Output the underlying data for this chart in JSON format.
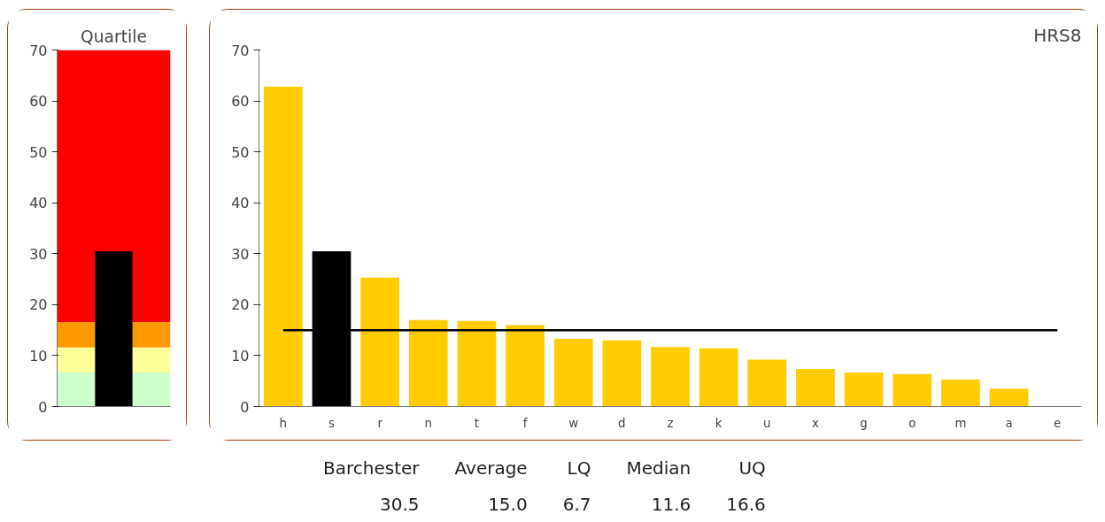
{
  "chart_data": [
    {
      "type": "bar",
      "title": "Quartile",
      "categories": [
        null
      ],
      "values": [
        30.5
      ],
      "color": "#000000",
      "ylim": [
        0,
        70
      ],
      "yticks": [
        0,
        10,
        20,
        30,
        40,
        50,
        60,
        70
      ],
      "tick_labels": "y",
      "grid": false,
      "bands": [
        {
          "axis": "y",
          "from": 0,
          "to": 6.7,
          "color": "#ccffcc"
        },
        {
          "axis": "y",
          "from": 6.7,
          "to": 11.6,
          "color": "#ffff99"
        },
        {
          "axis": "y",
          "from": 11.6,
          "to": 16.6,
          "color": "#ff9900"
        },
        {
          "axis": "y",
          "from": 16.6,
          "to": 70,
          "color": "#ff0000"
        }
      ]
    },
    {
      "type": "bar",
      "title": "HRS8",
      "categories": [
        "h",
        "s",
        "r",
        "n",
        "t",
        "f",
        "w",
        "d",
        "z",
        "k",
        "u",
        "x",
        "g",
        "o",
        "m",
        "a",
        "e"
      ],
      "values": [
        62.8,
        30.5,
        25.3,
        17.0,
        16.8,
        16.0,
        13.3,
        13.0,
        11.7,
        11.4,
        9.2,
        7.4,
        6.7,
        6.4,
        5.3,
        3.5,
        null
      ],
      "colors": [
        "#ffcc00",
        "#000000",
        "#ffcc00",
        "#ffcc00",
        "#ffcc00",
        "#ffcc00",
        "#ffcc00",
        "#ffcc00",
        "#ffcc00",
        "#ffcc00",
        "#ffcc00",
        "#ffcc00",
        "#ffcc00",
        "#ffcc00",
        "#ffcc00",
        "#ffcc00",
        "#ffcc00"
      ],
      "ylim": [
        0,
        70
      ],
      "yticks": [
        0,
        10,
        20,
        30,
        40,
        50,
        60,
        70
      ],
      "grid": false,
      "ref_lines": [
        {
          "axis": "y",
          "value": 15.0,
          "color": "#000000"
        }
      ],
      "annotations": [
        "Barchester",
        "Average",
        "LQ",
        "Median",
        "UQ",
        "30.5",
        "15.0",
        "6.7",
        "11.6",
        "16.6"
      ]
    }
  ]
}
